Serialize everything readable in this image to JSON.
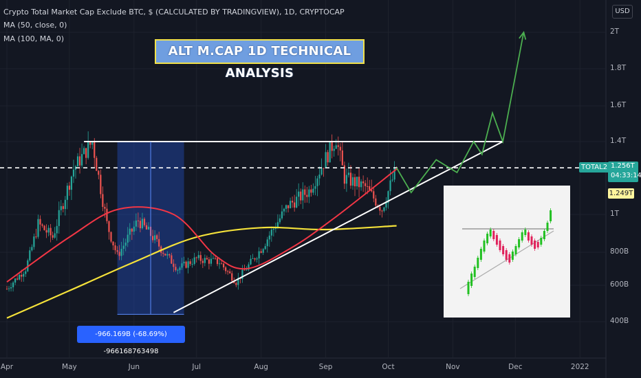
{
  "header": {
    "symbol_line": "Crypto Total Market Cap Exclude BTC, $ (CALCULATED BY TRADINGVIEW), 1D, CRYPTOCAP",
    "ma50_line": "MA (50, close, 0)",
    "ma100_line": "MA (100, MA, 0)"
  },
  "currency": "USD",
  "title_box": "ALT M.CAP 1D TECHNICAL ANALYSIS",
  "measure_label": "-966.169B (-68.69%) -966168763498",
  "symbol_tag": "TOTAL2",
  "price_tag": {
    "price": "1.256T",
    "countdown": "04:33:14"
  },
  "ma_tag": "1.249T",
  "colors": {
    "background": "#131722",
    "up": "#26a69a",
    "down": "#ef5350",
    "ma50": "#f23645",
    "ma100": "#f5e23a",
    "projection": "#4caf50",
    "measure_box": "#2962ff"
  },
  "chart_data": {
    "type": "line",
    "y_tick_labels": [
      "2T",
      "1.8T",
      "1.6T",
      "1.4T",
      "1T",
      "800B",
      "600B",
      "400B"
    ],
    "y_tick_values": [
      2.0,
      1.8,
      1.6,
      1.4,
      1.0,
      0.8,
      0.6,
      0.4
    ],
    "x_tick_labels": [
      "Apr",
      "May",
      "Jun",
      "Jul",
      "Aug",
      "Sep",
      "Oct",
      "Nov",
      "Dec",
      "2022"
    ],
    "x_tick_positions_days": [
      0,
      30,
      61,
      91,
      122,
      153,
      183,
      214,
      244,
      275
    ],
    "price_close": [
      {
        "x": "2021-04-01",
        "y": 0.58
      },
      {
        "x": "2021-04-10",
        "y": 0.7
      },
      {
        "x": "2021-04-16",
        "y": 0.95
      },
      {
        "x": "2021-04-23",
        "y": 0.88
      },
      {
        "x": "2021-05-03",
        "y": 1.25
      },
      {
        "x": "2021-05-12",
        "y": 1.4
      },
      {
        "x": "2021-05-19",
        "y": 0.95
      },
      {
        "x": "2021-05-24",
        "y": 0.78
      },
      {
        "x": "2021-06-03",
        "y": 0.97
      },
      {
        "x": "2021-06-10",
        "y": 0.88
      },
      {
        "x": "2021-06-22",
        "y": 0.7
      },
      {
        "x": "2021-07-01",
        "y": 0.76
      },
      {
        "x": "2021-07-12",
        "y": 0.74
      },
      {
        "x": "2021-07-20",
        "y": 0.62
      },
      {
        "x": "2021-08-01",
        "y": 0.82
      },
      {
        "x": "2021-08-14",
        "y": 1.05
      },
      {
        "x": "2021-08-24",
        "y": 1.13
      },
      {
        "x": "2021-09-06",
        "y": 1.42
      },
      {
        "x": "2021-09-10",
        "y": 1.2
      },
      {
        "x": "2021-09-20",
        "y": 1.15
      },
      {
        "x": "2021-09-28",
        "y": 1.03
      },
      {
        "x": "2021-10-05",
        "y": 1.256
      }
    ],
    "ma50": [
      {
        "x": "2021-04-01",
        "y": 0.62
      },
      {
        "x": "2021-05-01",
        "y": 0.88
      },
      {
        "x": "2021-05-25",
        "y": 1.03
      },
      {
        "x": "2021-06-20",
        "y": 1.0
      },
      {
        "x": "2021-07-10",
        "y": 0.78
      },
      {
        "x": "2021-07-25",
        "y": 0.7
      },
      {
        "x": "2021-08-15",
        "y": 0.82
      },
      {
        "x": "2021-09-05",
        "y": 0.98
      },
      {
        "x": "2021-10-05",
        "y": 1.249
      }
    ],
    "ma100": [
      {
        "x": "2021-04-01",
        "y": 0.42
      },
      {
        "x": "2021-05-01",
        "y": 0.57
      },
      {
        "x": "2021-06-01",
        "y": 0.74
      },
      {
        "x": "2021-07-01",
        "y": 0.88
      },
      {
        "x": "2021-08-01",
        "y": 0.93
      },
      {
        "x": "2021-09-01",
        "y": 0.92
      },
      {
        "x": "2021-10-05",
        "y": 0.94
      }
    ],
    "resistance_line": {
      "y": 1.4,
      "x_start": "2021-05-08",
      "x_end": "2021-11-25"
    },
    "current_price_line": {
      "y": 1.256
    },
    "support_trendline": [
      {
        "x": "2021-06-20",
        "y": 0.45
      },
      {
        "x": "2021-11-25",
        "y": 1.4
      }
    ],
    "measured_drop": {
      "x_start": "2021-05-24",
      "x_end": "2021-06-25",
      "y_top": 1.4,
      "y_bottom": 0.44
    },
    "projection_path": [
      {
        "x": "2021-10-05",
        "y": 1.256
      },
      {
        "x": "2021-10-12",
        "y": 1.12
      },
      {
        "x": "2021-10-24",
        "y": 1.3
      },
      {
        "x": "2021-11-03",
        "y": 1.23
      },
      {
        "x": "2021-11-11",
        "y": 1.4
      },
      {
        "x": "2021-11-15",
        "y": 1.33
      },
      {
        "x": "2021-11-20",
        "y": 1.56
      },
      {
        "x": "2021-11-25",
        "y": 1.4
      },
      {
        "x": "2021-12-05",
        "y": 2.0
      }
    ],
    "inset_pattern": "ascending-triangle-breakout"
  }
}
